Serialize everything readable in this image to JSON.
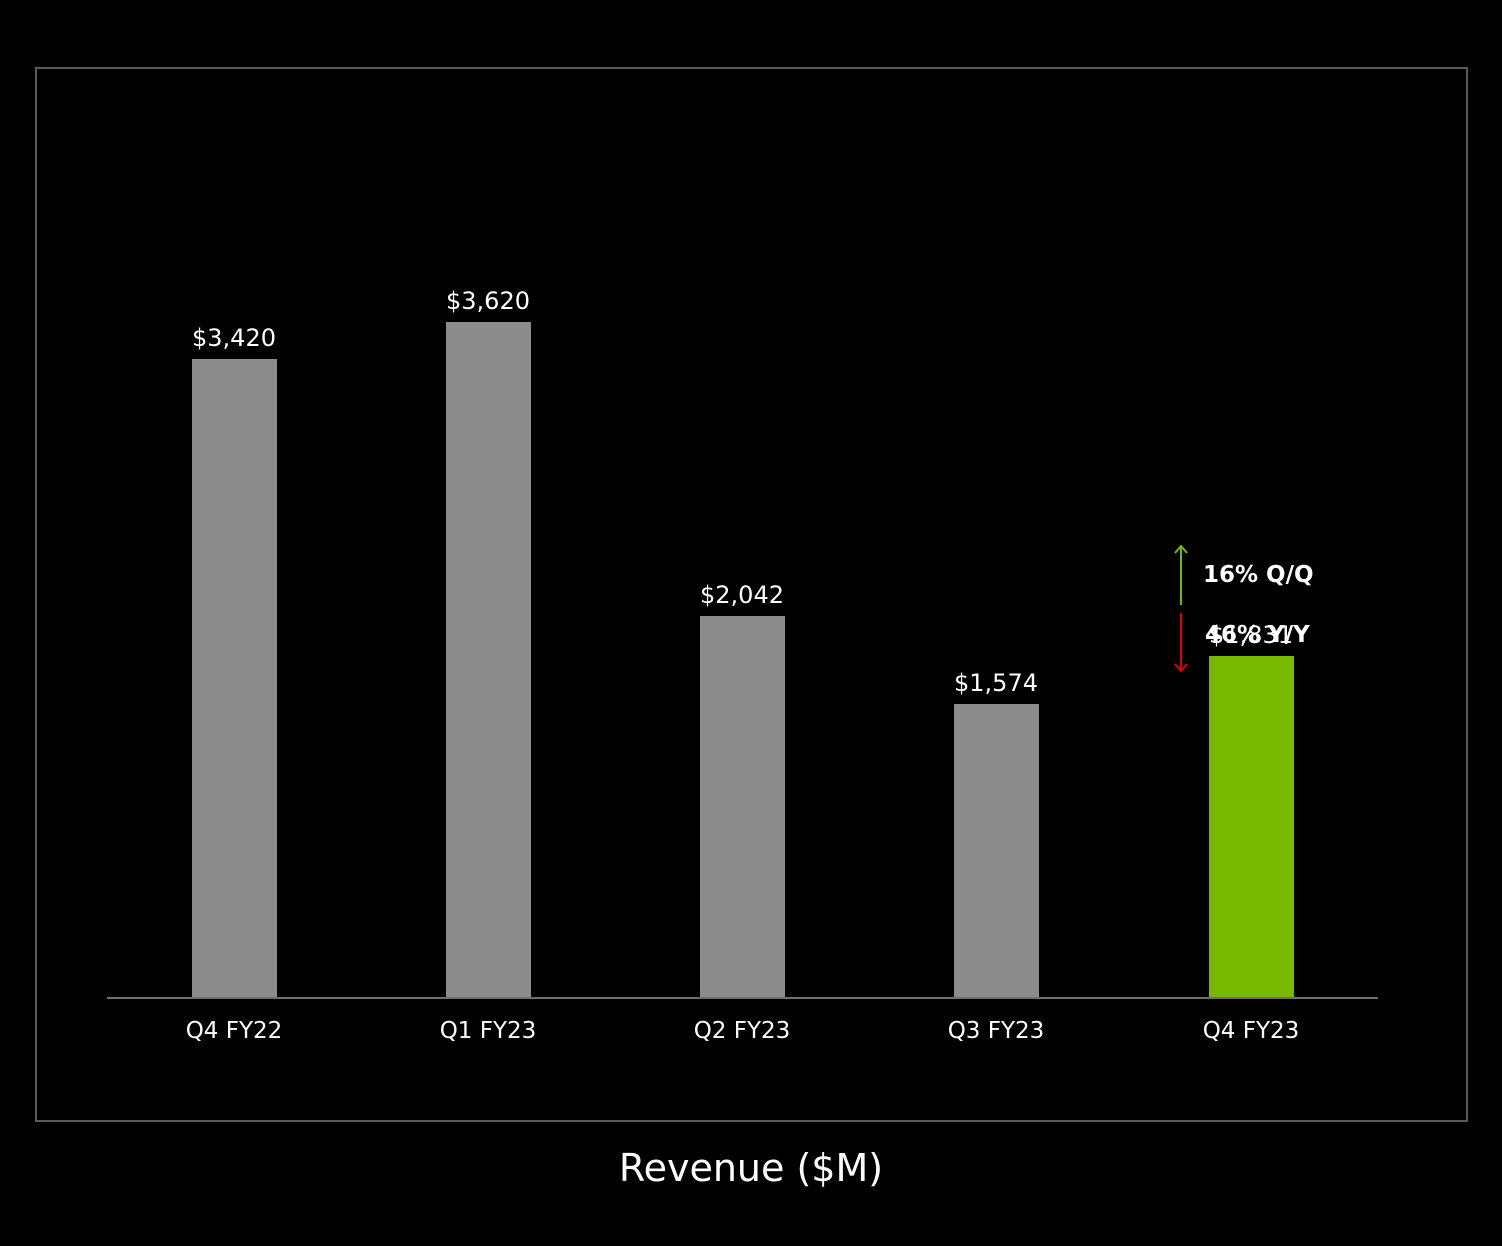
{
  "chart_data": {
    "type": "bar",
    "title": "Revenue ($M)",
    "xlabel": "",
    "ylabel": "",
    "categories": [
      "Q4 FY22",
      "Q1 FY23",
      "Q2 FY23",
      "Q3 FY23",
      "Q4 FY23"
    ],
    "values": [
      3420,
      3620,
      2042,
      1574,
      1831
    ],
    "value_labels": [
      "$3,420",
      "$3,620",
      "$2,042",
      "$1,574",
      "$1,831"
    ],
    "bar_colors": [
      "#8c8c8c",
      "#8c8c8c",
      "#8c8c8c",
      "#8c8c8c",
      "#76b900"
    ],
    "highlighted_category": "Q4 FY23",
    "ylim": [
      0,
      3620
    ],
    "grid": false,
    "legend": null,
    "annotations": [
      {
        "text": "16% Q/Q",
        "direction": "up",
        "color": "#76b900"
      },
      {
        "text": "46% Y/Y",
        "direction": "down",
        "color": "#e00000"
      }
    ]
  },
  "labels": {
    "title": "Revenue ($M)",
    "bars": [
      {
        "category": "Q4 FY22",
        "value": "$3,420"
      },
      {
        "category": "Q1 FY23",
        "value": "$3,620"
      },
      {
        "category": "Q2 FY23",
        "value": "$2,042"
      },
      {
        "category": "Q3 FY23",
        "value": "$1,574"
      },
      {
        "category": "Q4 FY23",
        "value": "$1,831"
      }
    ],
    "qq": "16% Q/Q",
    "yy": "46% Y/Y"
  }
}
